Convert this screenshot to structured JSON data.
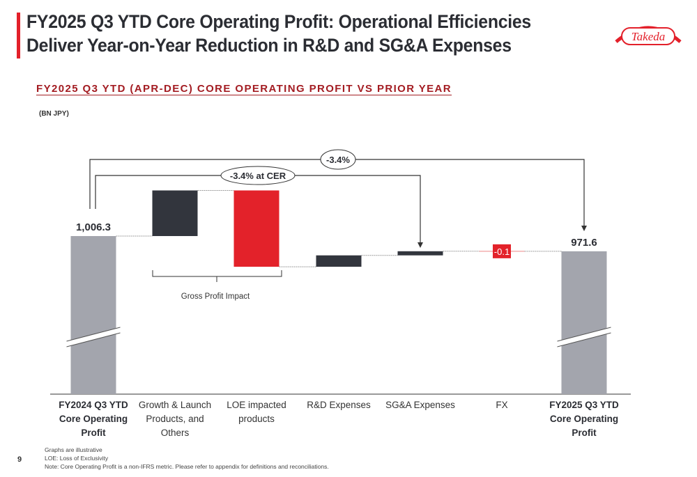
{
  "header": {
    "title_line1": "FY2025 Q3 YTD Core Operating Profit: Operational Efficiencies",
    "title_line2": "Deliver Year-on-Year Reduction in R&D and SG&A Expenses",
    "logo_text": "Takeda",
    "accent_color": "#e3202a"
  },
  "subtitle": "FY2025 Q3 YTD (APR-DEC) CORE OPERATING PROFIT VS PRIOR YEAR",
  "unit_label": "(BN JPY)",
  "chart_data": {
    "type": "waterfall",
    "categories": [
      "FY2024 Q3 YTD Core Operating Profit",
      "Growth & Launch Products, and Others",
      "LOE impacted products",
      "R&D Expenses",
      "SG&A Expenses",
      "FX",
      "FY2025 Q3 YTD Core Operating Profit"
    ],
    "values": [
      1006.3,
      104,
      -174,
      26,
      9.4,
      -0.1,
      971.6
    ],
    "kinds": [
      "total",
      "increase",
      "decrease",
      "increase",
      "increase",
      "decrease",
      "total"
    ],
    "data_labels": [
      "1,006.3",
      "",
      "",
      "",
      "",
      "-0.1",
      "971.6"
    ],
    "colors": {
      "total": "#a3a5ad",
      "increase": "#32353d",
      "decrease": "#e3222a"
    },
    "axis_break": true,
    "annotations": {
      "cer_change": "-3.4% at CER",
      "reported_change": "-3.4%",
      "bracket_label": "Gross Profit Impact"
    }
  },
  "footer": {
    "page_number": "9",
    "notes": [
      "Graphs are illustrative",
      "LOE: Loss of Exclusivity",
      "Note: Core Operating Profit is a non-IFRS metric. Please refer to appendix for definitions and reconciliations."
    ]
  }
}
